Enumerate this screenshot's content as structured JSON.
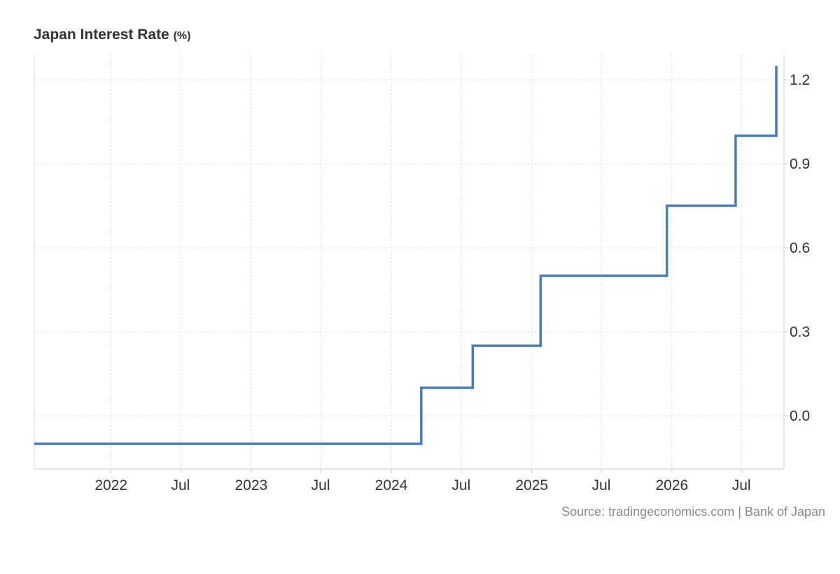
{
  "header": {
    "title": "Japan Interest Rate",
    "unit": "(%)"
  },
  "source": "Source: tradingeconomics.com | Bank of Japan",
  "colors": {
    "line": "#4a7db5",
    "grid": "#d9d9d9",
    "axis": "#cccccc",
    "text": "#333333",
    "source": "#8a8a8a"
  },
  "chart_data": {
    "type": "line",
    "step": true,
    "title": "Japan Interest Rate",
    "xlabel": "",
    "ylabel": "",
    "xlim": [
      "2021-06-15",
      "2026-10-20"
    ],
    "ylim": [
      -0.19,
      1.29
    ],
    "grid": true,
    "x_ticks": [
      {
        "x": "2022-01-01",
        "label": "2022"
      },
      {
        "x": "2022-07-01",
        "label": "Jul"
      },
      {
        "x": "2023-01-01",
        "label": "2023"
      },
      {
        "x": "2023-07-01",
        "label": "Jul"
      },
      {
        "x": "2024-01-01",
        "label": "2024"
      },
      {
        "x": "2024-07-01",
        "label": "Jul"
      },
      {
        "x": "2025-01-01",
        "label": "2025"
      },
      {
        "x": "2025-07-01",
        "label": "Jul"
      },
      {
        "x": "2026-01-01",
        "label": "2026"
      },
      {
        "x": "2026-07-01",
        "label": "Jul"
      }
    ],
    "y_ticks": [
      {
        "y": 0.0,
        "label": "0.0"
      },
      {
        "y": 0.3,
        "label": "0.3"
      },
      {
        "y": 0.6,
        "label": "0.6"
      },
      {
        "y": 0.9,
        "label": "0.9"
      },
      {
        "y": 1.2,
        "label": "1.2"
      }
    ],
    "series": [
      {
        "points": [
          {
            "x": "2021-06-15",
            "y": -0.1
          },
          {
            "x": "2024-03-19",
            "y": 0.1
          },
          {
            "x": "2024-07-31",
            "y": 0.25
          },
          {
            "x": "2025-01-24",
            "y": 0.5
          },
          {
            "x": "2025-12-19",
            "y": 0.75
          },
          {
            "x": "2026-06-16",
            "y": 1.0
          },
          {
            "x": "2026-09-30",
            "y": 1.25
          }
        ]
      }
    ]
  }
}
